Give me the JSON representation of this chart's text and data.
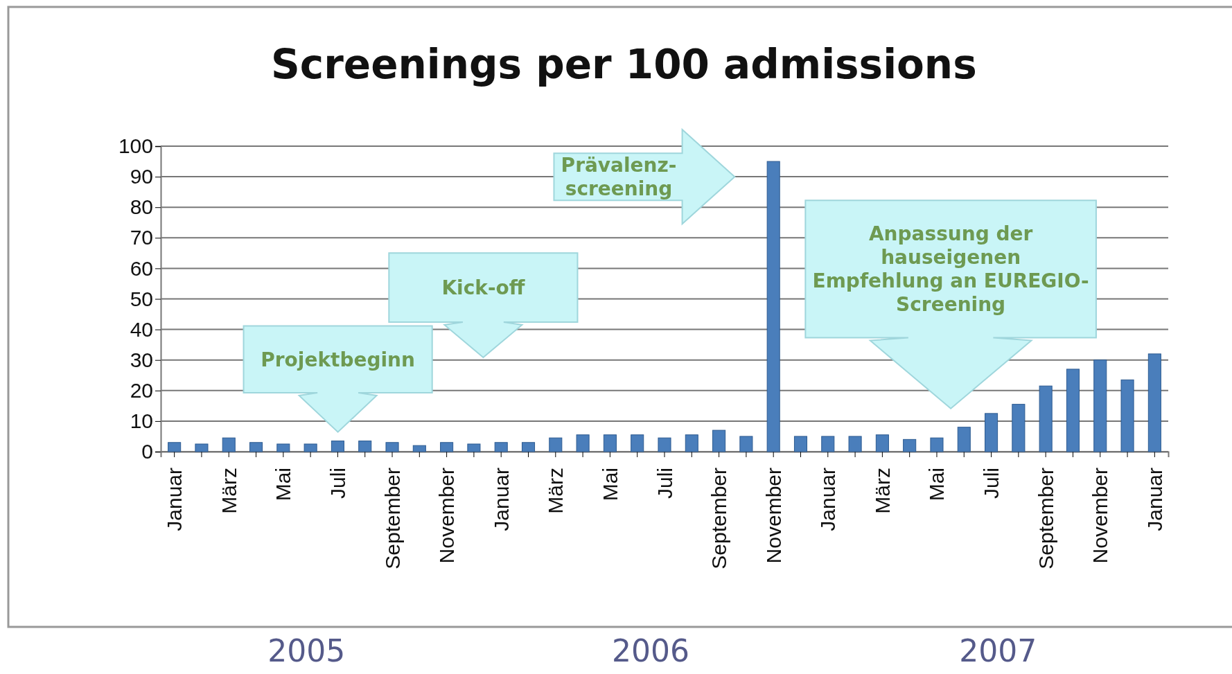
{
  "chart_data": {
    "type": "bar",
    "title": "Screenings per 100 admissions",
    "categories": [
      "Januar",
      null,
      "März",
      null,
      "Mai",
      null,
      "Juli",
      null,
      "September",
      null,
      "November",
      null,
      "Januar",
      null,
      "März",
      null,
      "Mai",
      null,
      "Juli",
      null,
      "September",
      null,
      "November",
      null,
      "Januar",
      null,
      "März",
      null,
      "Mai",
      null,
      "Juli",
      null,
      "September",
      null,
      "November",
      null,
      "Januar"
    ],
    "values": [
      3,
      2.5,
      4.5,
      3,
      2.5,
      2.5,
      3.5,
      3.5,
      3,
      2,
      3,
      2.5,
      3,
      3,
      4.5,
      5.5,
      5.5,
      5.5,
      4.5,
      5.5,
      7,
      5,
      95,
      5,
      5,
      5,
      5.5,
      4,
      4.5,
      8,
      12.5,
      15.5,
      21.5,
      27,
      30,
      23.5,
      32
    ],
    "color": "#4a7ebb",
    "ylim": [
      0,
      100
    ],
    "yticks": [
      0,
      10,
      20,
      30,
      40,
      50,
      60,
      70,
      80,
      90,
      100
    ],
    "grid": "y",
    "annotations": [
      "Projektbeginn",
      "Kick-off",
      "Prävalenz-screening",
      "Anpassung der hauseigenen Empfehlung an EUREGIO-Screening",
      "2005",
      "2006",
      "2007"
    ]
  }
}
